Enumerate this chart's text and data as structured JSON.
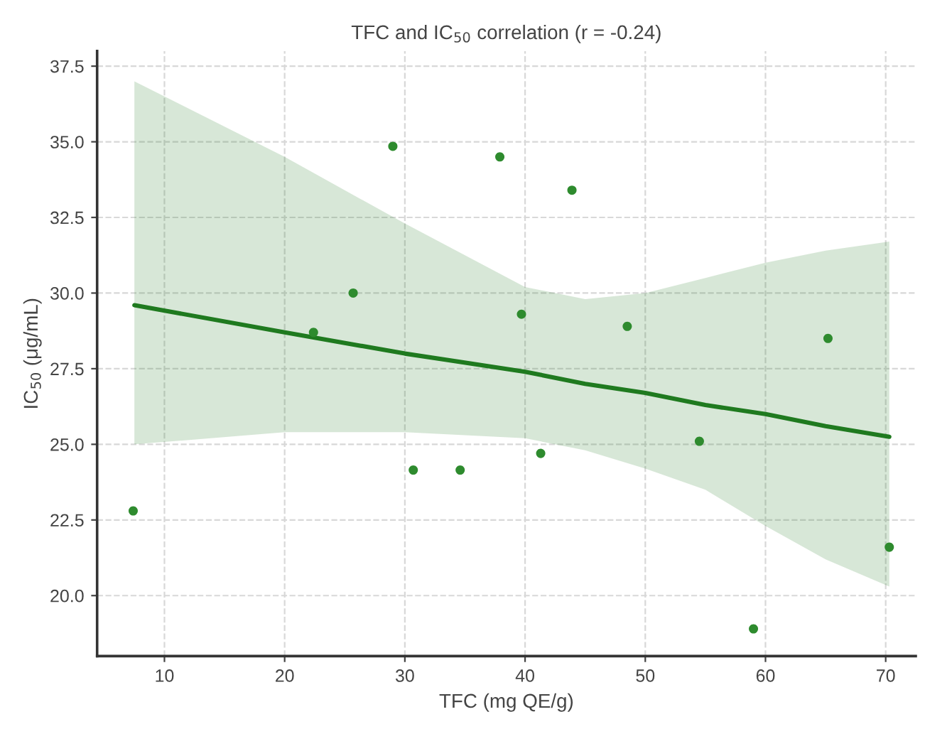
{
  "chart_data": {
    "type": "scatter",
    "title": "TFC and IC$_{50}$ correlation (r = -0.24)",
    "xlabel": "TFC (mg QE/g)",
    "ylabel": "IC$_{50}$ (μg/mL)",
    "x": [
      7.4,
      22.4,
      25.7,
      29.0,
      30.7,
      34.6,
      37.9,
      39.7,
      41.3,
      43.9,
      48.5,
      54.5,
      59.0,
      65.2,
      70.3
    ],
    "series": [
      {
        "marker": "circle",
        "color": "#2e8b2e",
        "values": [
          22.8,
          28.7,
          30.0,
          34.85,
          24.15,
          24.15,
          34.5,
          29.3,
          24.7,
          33.4,
          28.9,
          25.1,
          18.9,
          28.5,
          21.6
        ]
      },
      {
        "type": "line",
        "color": "#1f7a1f",
        "x": [
          7.5,
          20,
          30,
          40,
          45,
          50,
          55,
          60,
          65,
          70.3
        ],
        "values": [
          29.6,
          28.7,
          28.0,
          27.4,
          27.0,
          26.7,
          26.3,
          26.0,
          25.6,
          25.25
        ],
        "lower": [
          25.0,
          25.4,
          25.4,
          25.2,
          24.8,
          24.2,
          23.5,
          22.3,
          21.2,
          20.3
        ],
        "upper": [
          37.0,
          34.5,
          32.3,
          30.2,
          29.8,
          30.0,
          30.5,
          31.0,
          31.4,
          31.7
        ]
      }
    ],
    "xlim": [
      4.4,
      72.5
    ],
    "ylim": [
      18.0,
      38.0
    ],
    "xticks": [
      10,
      20,
      30,
      40,
      50,
      60,
      70
    ],
    "yticks": [
      {
        "value": 20,
        "label": "20.0"
      },
      22.5,
      {
        "value": 25,
        "label": "25.0"
      },
      27.5,
      {
        "value": 30,
        "label": "30.0"
      },
      32.5,
      {
        "value": 35,
        "label": "35.0"
      },
      37.5
    ],
    "grid": true,
    "line_style": "solid"
  }
}
